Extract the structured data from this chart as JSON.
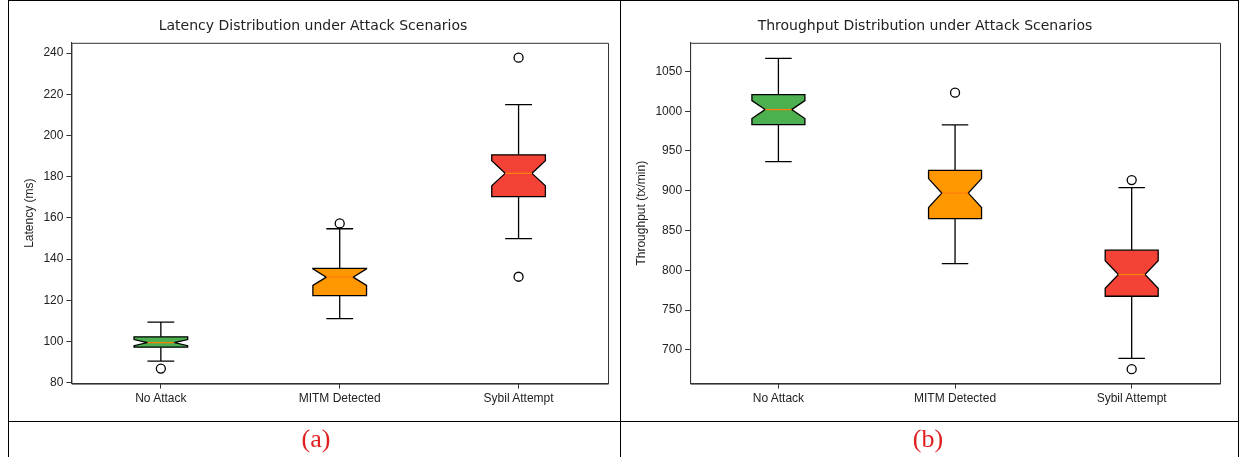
{
  "chart_data": [
    {
      "type": "box",
      "title": "Latency Distribution under Attack Scenarios",
      "ylabel": "Latency (ms)",
      "categories": [
        "No Attack",
        "MITM Detected",
        "Sybil Attempt"
      ],
      "colors": [
        "#4caf50",
        "#ff9800",
        "#f44336"
      ],
      "boxes": [
        {
          "low": 90.4,
          "q1": 97.2,
          "median": 99.4,
          "q3": 102.2,
          "high": 109.4,
          "outliers": [
            86.8
          ]
        },
        {
          "low": 111.1,
          "q1": 122.2,
          "median": 131.2,
          "q3": 135.5,
          "high": 154.7,
          "outliers": [
            157.3
          ]
        },
        {
          "low": 149.9,
          "q1": 170.3,
          "median": 181.6,
          "q3": 190.6,
          "high": 215,
          "outliers": [
            237.8,
            131.4
          ]
        }
      ],
      "ylim": [
        79.5,
        245
      ],
      "yticks": [
        80,
        100,
        120,
        140,
        160,
        180,
        200,
        220,
        240
      ],
      "grid": false,
      "legend": false,
      "annotations": [
        "(a)"
      ]
    },
    {
      "type": "box",
      "title": "Throughput Distribution under Attack Scenarios",
      "ylabel": "Throughput (tx/min)",
      "categories": [
        "No Attack",
        "MITM Detected",
        "Sybil Attempt"
      ],
      "colors": [
        "#4caf50",
        "#ff9800",
        "#f44336"
      ],
      "boxes": [
        {
          "low": 936.6,
          "q1": 983.2,
          "median": 1002,
          "q3": 1020.8,
          "high": 1066.3
        },
        {
          "low": 808.4,
          "q1": 864.9,
          "median": 897,
          "q3": 925.7,
          "high": 982.7,
          "outliers": [
            1023.3
          ]
        },
        {
          "low": 689.1,
          "q1": 767.3,
          "median": 794.6,
          "q3": 825.2,
          "high": 904,
          "outliers": [
            913.4,
            675.7
          ]
        }
      ],
      "ylim": [
        657.5,
        1086
      ],
      "yticks": [
        700,
        750,
        800,
        850,
        900,
        950,
        1000,
        1050
      ],
      "grid": false,
      "legend": false,
      "annotations": [
        "(b)"
      ]
    }
  ]
}
